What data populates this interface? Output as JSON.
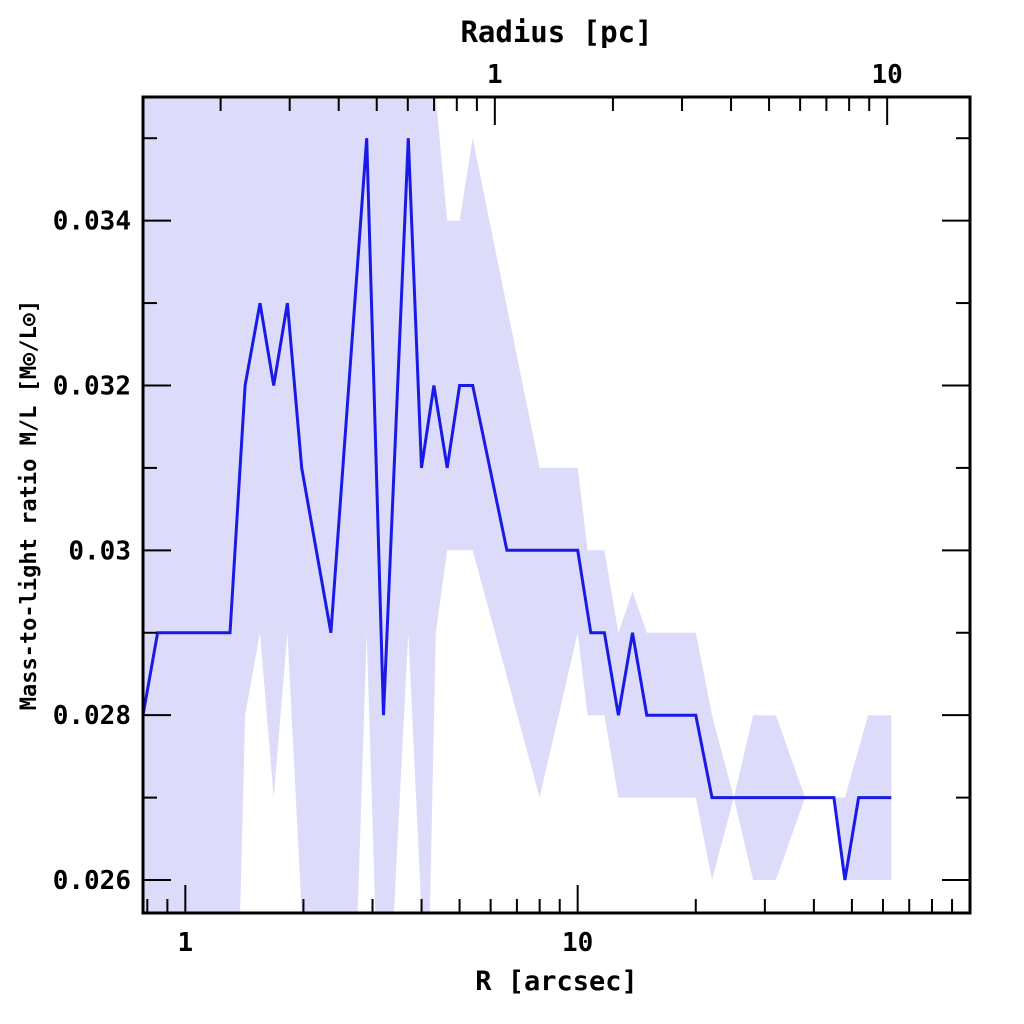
{
  "chart_data": {
    "type": "line",
    "xlabel": "R [arcsec]",
    "ylabel": "Mass-to-light ratio M/L [M⊙/L⊙]",
    "top_axis_label": "Radius [pc]",
    "x_scale": "log",
    "xlim": [
      0.78,
      100
    ],
    "ylim": [
      0.0256,
      0.0355
    ],
    "x_ticks": [
      1,
      10
    ],
    "x_tick_labels": [
      "1",
      "10"
    ],
    "top_ticks": [
      1,
      10
    ],
    "top_tick_labels": [
      "1",
      "10"
    ],
    "top_axis_scale_arcsec_per_pc": 6.15,
    "y_ticks": [
      0.026,
      0.028,
      0.03,
      0.032,
      0.034
    ],
    "y_tick_labels": [
      "0.026",
      "0.028",
      "0.03",
      "0.032",
      "0.034"
    ],
    "line_color": "#1a1ae6",
    "band_color": "#dcdcfa",
    "series": [
      {
        "values": [
          {
            "x": 0.78,
            "y": 0.028
          },
          {
            "x": 0.85,
            "y": 0.029
          },
          {
            "x": 1.3,
            "y": 0.029
          },
          {
            "x": 1.42,
            "y": 0.032
          },
          {
            "x": 1.55,
            "y": 0.033
          },
          {
            "x": 1.68,
            "y": 0.032
          },
          {
            "x": 1.82,
            "y": 0.033
          },
          {
            "x": 1.98,
            "y": 0.031
          },
          {
            "x": 2.35,
            "y": 0.029
          },
          {
            "x": 2.9,
            "y": 0.035
          },
          {
            "x": 3.2,
            "y": 0.028
          },
          {
            "x": 3.7,
            "y": 0.035
          },
          {
            "x": 4.0,
            "y": 0.031
          },
          {
            "x": 4.3,
            "y": 0.032
          },
          {
            "x": 4.65,
            "y": 0.031
          },
          {
            "x": 5.0,
            "y": 0.032
          },
          {
            "x": 5.4,
            "y": 0.032
          },
          {
            "x": 6.6,
            "y": 0.03
          },
          {
            "x": 10.0,
            "y": 0.03
          },
          {
            "x": 10.8,
            "y": 0.029
          },
          {
            "x": 11.7,
            "y": 0.029
          },
          {
            "x": 12.7,
            "y": 0.028
          },
          {
            "x": 13.8,
            "y": 0.029
          },
          {
            "x": 15.0,
            "y": 0.028
          },
          {
            "x": 20.0,
            "y": 0.028
          },
          {
            "x": 22.0,
            "y": 0.027
          },
          {
            "x": 45.0,
            "y": 0.027
          },
          {
            "x": 48.0,
            "y": 0.026
          },
          {
            "x": 52.0,
            "y": 0.027
          },
          {
            "x": 63.0,
            "y": 0.027
          }
        ]
      }
    ],
    "band": [
      {
        "x": 0.78,
        "lo": 0.0256,
        "hi": 0.0355
      },
      {
        "x": 1.3,
        "lo": 0.0256,
        "hi": 0.0355
      },
      {
        "x": 1.38,
        "lo": 0.0256,
        "hi": 0.0355
      },
      {
        "x": 1.42,
        "lo": 0.028,
        "hi": 0.0355
      },
      {
        "x": 1.55,
        "lo": 0.029,
        "hi": 0.0355
      },
      {
        "x": 1.68,
        "lo": 0.027,
        "hi": 0.0355
      },
      {
        "x": 1.82,
        "lo": 0.029,
        "hi": 0.0355
      },
      {
        "x": 1.98,
        "lo": 0.0256,
        "hi": 0.0355
      },
      {
        "x": 2.35,
        "lo": 0.0256,
        "hi": 0.0355
      },
      {
        "x": 2.75,
        "lo": 0.0256,
        "hi": 0.0355
      },
      {
        "x": 2.9,
        "lo": 0.029,
        "hi": 0.0355
      },
      {
        "x": 3.05,
        "lo": 0.0256,
        "hi": 0.0355
      },
      {
        "x": 3.4,
        "lo": 0.0256,
        "hi": 0.0355
      },
      {
        "x": 3.7,
        "lo": 0.029,
        "hi": 0.0355
      },
      {
        "x": 4.0,
        "lo": 0.0256,
        "hi": 0.0355
      },
      {
        "x": 4.2,
        "lo": 0.0256,
        "hi": 0.0355
      },
      {
        "x": 4.35,
        "lo": 0.029,
        "hi": 0.0355
      },
      {
        "x": 4.65,
        "lo": 0.03,
        "hi": 0.034
      },
      {
        "x": 5.0,
        "lo": 0.03,
        "hi": 0.034
      },
      {
        "x": 5.4,
        "lo": 0.03,
        "hi": 0.035
      },
      {
        "x": 8.0,
        "lo": 0.027,
        "hi": 0.031
      },
      {
        "x": 10.0,
        "lo": 0.029,
        "hi": 0.031
      },
      {
        "x": 10.6,
        "lo": 0.028,
        "hi": 0.03
      },
      {
        "x": 11.7,
        "lo": 0.028,
        "hi": 0.03
      },
      {
        "x": 12.7,
        "lo": 0.027,
        "hi": 0.029
      },
      {
        "x": 13.8,
        "lo": 0.027,
        "hi": 0.0295
      },
      {
        "x": 15.0,
        "lo": 0.027,
        "hi": 0.029
      },
      {
        "x": 20.0,
        "lo": 0.027,
        "hi": 0.029
      },
      {
        "x": 22.0,
        "lo": 0.026,
        "hi": 0.028
      },
      {
        "x": 25.0,
        "lo": 0.027,
        "hi": 0.027
      },
      {
        "x": 28.0,
        "lo": 0.026,
        "hi": 0.028
      },
      {
        "x": 32.0,
        "lo": 0.026,
        "hi": 0.028
      },
      {
        "x": 38.0,
        "lo": 0.027,
        "hi": 0.027
      },
      {
        "x": 45.0,
        "lo": 0.027,
        "hi": 0.027
      },
      {
        "x": 48.0,
        "lo": 0.026,
        "hi": 0.027
      },
      {
        "x": 55.0,
        "lo": 0.026,
        "hi": 0.028
      },
      {
        "x": 63.0,
        "lo": 0.026,
        "hi": 0.028
      }
    ]
  }
}
